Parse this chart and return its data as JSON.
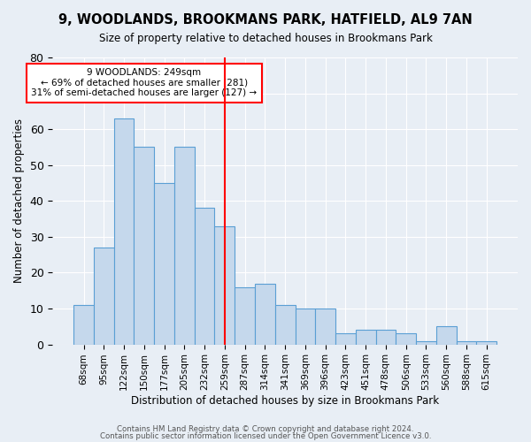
{
  "title": "9, WOODLANDS, BROOKMANS PARK, HATFIELD, AL9 7AN",
  "subtitle": "Size of property relative to detached houses in Brookmans Park",
  "xlabel": "Distribution of detached houses by size in Brookmans Park",
  "ylabel": "Number of detached properties",
  "categories": [
    "68sqm",
    "95sqm",
    "122sqm",
    "150sqm",
    "177sqm",
    "205sqm",
    "232sqm",
    "259sqm",
    "287sqm",
    "314sqm",
    "341sqm",
    "369sqm",
    "396sqm",
    "423sqm",
    "451sqm",
    "478sqm",
    "506sqm",
    "533sqm",
    "560sqm",
    "588sqm",
    "615sqm"
  ],
  "values": [
    11,
    27,
    63,
    55,
    45,
    55,
    38,
    33,
    16,
    17,
    11,
    10,
    10,
    3,
    4,
    4,
    3,
    1,
    5,
    1,
    1
  ],
  "bar_color": "#c5d8ec",
  "bar_edge_color": "#5a9fd4",
  "red_line_index": 7,
  "annotation_text": "9 WOODLANDS: 249sqm\n← 69% of detached houses are smaller (281)\n31% of semi-detached houses are larger (127) →",
  "annotation_box_color": "white",
  "annotation_box_edge_color": "red",
  "ylim": [
    0,
    80
  ],
  "yticks": [
    0,
    10,
    20,
    30,
    40,
    50,
    60,
    70,
    80
  ],
  "footer1": "Contains HM Land Registry data © Crown copyright and database right 2024.",
  "footer2": "Contains public sector information licensed under the Open Government Licence v3.0.",
  "background_color": "#e8eef5",
  "grid_color": "white"
}
